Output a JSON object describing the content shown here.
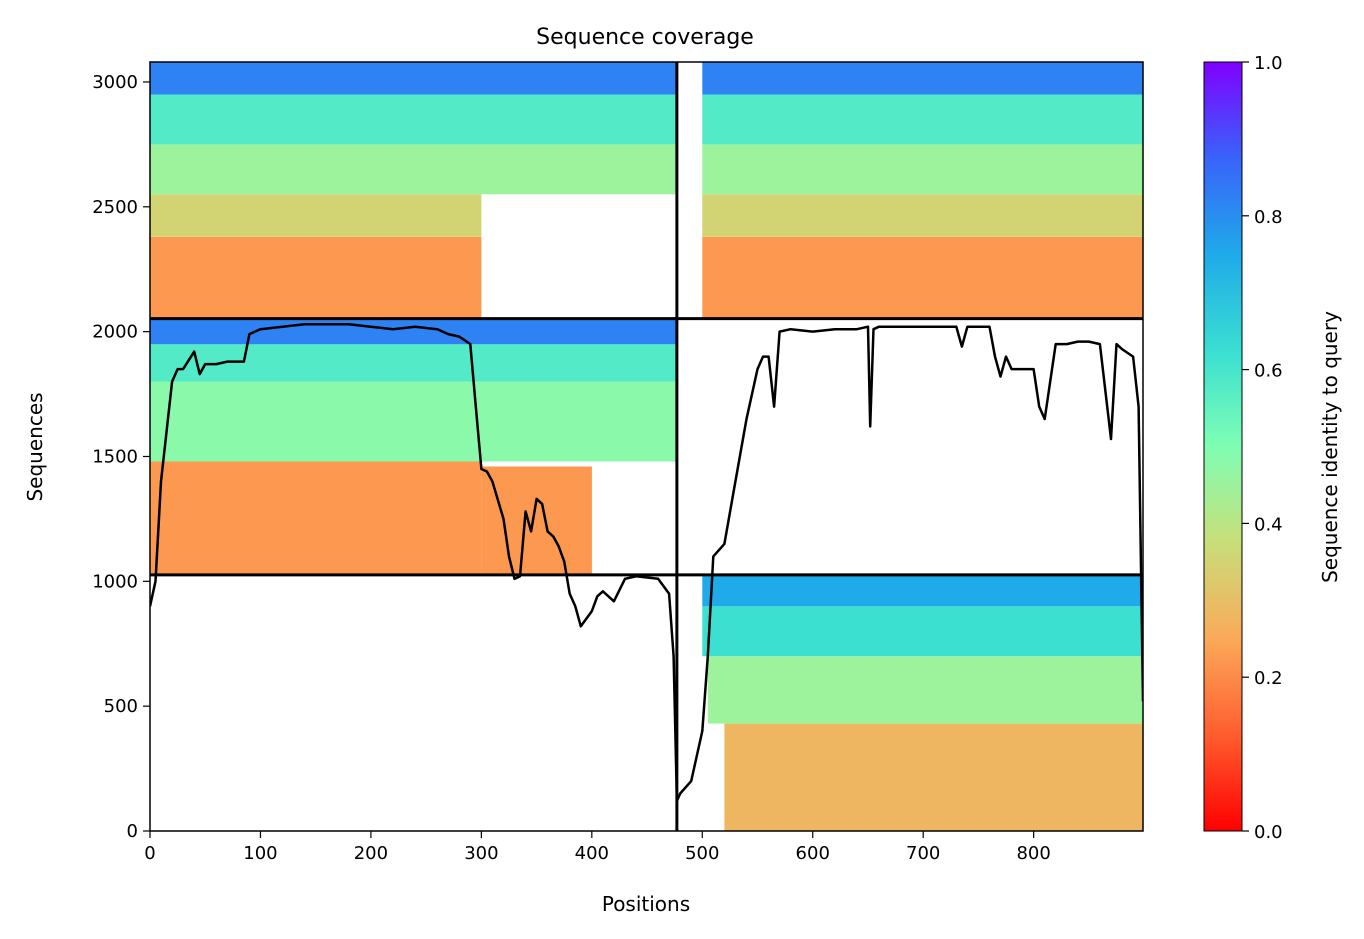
{
  "chart_data": {
    "type": "heatmap",
    "title": "Sequence coverage",
    "xlabel": "Positions",
    "ylabel": "Sequences",
    "xlim": [
      0,
      899
    ],
    "ylim": [
      0,
      3080
    ],
    "x_ticks": [
      0,
      100,
      200,
      300,
      400,
      500,
      600,
      700,
      800
    ],
    "y_ticks": [
      0,
      500,
      1000,
      1500,
      2000,
      2500,
      3000
    ],
    "grid": false,
    "colorbar": {
      "label": "Sequence identity to query",
      "colormap": "rainbow_r",
      "range": [
        0,
        1
      ],
      "ticks": [
        0.0,
        0.2,
        0.4,
        0.6,
        0.8,
        1.0
      ],
      "tick_labels": [
        "0.0",
        "0.2",
        "0.4",
        "0.6",
        "0.8",
        "1.0"
      ]
    },
    "block_boundaries": {
      "x": [
        477
      ],
      "y": [
        1026,
        2052
      ]
    },
    "blocks": [
      {
        "name": "bottom-right",
        "x_range": [
          477,
          899
        ],
        "y_range": [
          0,
          1026
        ],
        "bands": [
          {
            "y": [
              0,
              430
            ],
            "x": [
              520,
              899
            ],
            "identity": 0.28
          },
          {
            "y": [
              430,
              700
            ],
            "x": [
              505,
              899
            ],
            "identity": 0.45
          },
          {
            "y": [
              700,
              900
            ],
            "x": [
              500,
              899
            ],
            "identity": 0.62
          },
          {
            "y": [
              900,
              1026
            ],
            "x": [
              500,
              899
            ],
            "identity": 0.75
          }
        ]
      },
      {
        "name": "middle-left",
        "x_range": [
          0,
          477
        ],
        "y_range": [
          1026,
          2052
        ],
        "bands": [
          {
            "y": [
              1026,
              1480
            ],
            "x": [
              0,
              300
            ],
            "identity": 0.22
          },
          {
            "y": [
              1026,
              1460
            ],
            "x": [
              300,
              400
            ],
            "identity": 0.22
          },
          {
            "y": [
              1480,
              1800
            ],
            "x": [
              0,
              477
            ],
            "identity": 0.48
          },
          {
            "y": [
              1800,
              1950
            ],
            "x": [
              0,
              477
            ],
            "identity": 0.58
          },
          {
            "y": [
              1950,
              2052
            ],
            "x": [
              0,
              477
            ],
            "identity": 0.82
          }
        ]
      },
      {
        "name": "top-left",
        "x_range": [
          0,
          477
        ],
        "y_range": [
          2052,
          3080
        ],
        "bands": [
          {
            "y": [
              2052,
              2380
            ],
            "x": [
              0,
              300
            ],
            "identity": 0.22
          },
          {
            "y": [
              2380,
              2550
            ],
            "x": [
              0,
              300
            ],
            "identity": 0.35
          },
          {
            "y": [
              2550,
              2750
            ],
            "x": [
              0,
              477
            ],
            "identity": 0.45
          },
          {
            "y": [
              2750,
              2950
            ],
            "x": [
              0,
              477
            ],
            "identity": 0.58
          },
          {
            "y": [
              2950,
              3080
            ],
            "x": [
              0,
              477
            ],
            "identity": 0.82
          }
        ]
      },
      {
        "name": "top-right",
        "x_range": [
          477,
          899
        ],
        "y_range": [
          2052,
          3080
        ],
        "bands": [
          {
            "y": [
              2052,
              2380
            ],
            "x": [
              500,
              899
            ],
            "identity": 0.22
          },
          {
            "y": [
              2380,
              2550
            ],
            "x": [
              500,
              899
            ],
            "identity": 0.35
          },
          {
            "y": [
              2550,
              2750
            ],
            "x": [
              500,
              899
            ],
            "identity": 0.45
          },
          {
            "y": [
              2750,
              2950
            ],
            "x": [
              500,
              899
            ],
            "identity": 0.58
          },
          {
            "y": [
              2950,
              3080
            ],
            "x": [
              500,
              899
            ],
            "identity": 0.82
          }
        ]
      }
    ],
    "series": [
      {
        "type": "line",
        "color": "#000000",
        "x": [
          0,
          5,
          10,
          20,
          25,
          30,
          40,
          45,
          50,
          60,
          70,
          85,
          90,
          100,
          120,
          140,
          160,
          180,
          200,
          220,
          240,
          260,
          270,
          280,
          290,
          295,
          300,
          305,
          310,
          320,
          325,
          330,
          335,
          340,
          345,
          350,
          355,
          360,
          365,
          370,
          375,
          380,
          385,
          390,
          395,
          400,
          405,
          410,
          420,
          430,
          440,
          460,
          470,
          474,
          477,
          480,
          490,
          500,
          505,
          510,
          520,
          530,
          540,
          545,
          550,
          555,
          560,
          565,
          570,
          580,
          600,
          620,
          640,
          650,
          652,
          655,
          660,
          700,
          720,
          730,
          735,
          740,
          760,
          765,
          770,
          775,
          780,
          800,
          805,
          810,
          815,
          820,
          830,
          840,
          850,
          860,
          870,
          875,
          880,
          890,
          895,
          899
        ],
        "y": [
          900,
          1000,
          1400,
          1800,
          1850,
          1850,
          1920,
          1830,
          1870,
          1870,
          1880,
          1880,
          1990,
          2010,
          2020,
          2030,
          2030,
          2030,
          2020,
          2010,
          2020,
          2010,
          1990,
          1980,
          1950,
          1700,
          1450,
          1440,
          1400,
          1250,
          1100,
          1010,
          1020,
          1280,
          1200,
          1330,
          1310,
          1200,
          1180,
          1140,
          1080,
          950,
          900,
          820,
          850,
          880,
          940,
          960,
          920,
          1010,
          1020,
          1010,
          950,
          700,
          120,
          150,
          200,
          400,
          700,
          1100,
          1150,
          1400,
          1650,
          1750,
          1850,
          1900,
          1900,
          1700,
          2000,
          2010,
          2000,
          2010,
          2010,
          2020,
          1620,
          2010,
          2020,
          2020,
          2020,
          2020,
          1940,
          2020,
          2020,
          1900,
          1820,
          1900,
          1850,
          1850,
          1700,
          1650,
          1800,
          1950,
          1950,
          1960,
          1960,
          1950,
          1570,
          1950,
          1930,
          1900,
          1700,
          520
        ]
      }
    ]
  }
}
